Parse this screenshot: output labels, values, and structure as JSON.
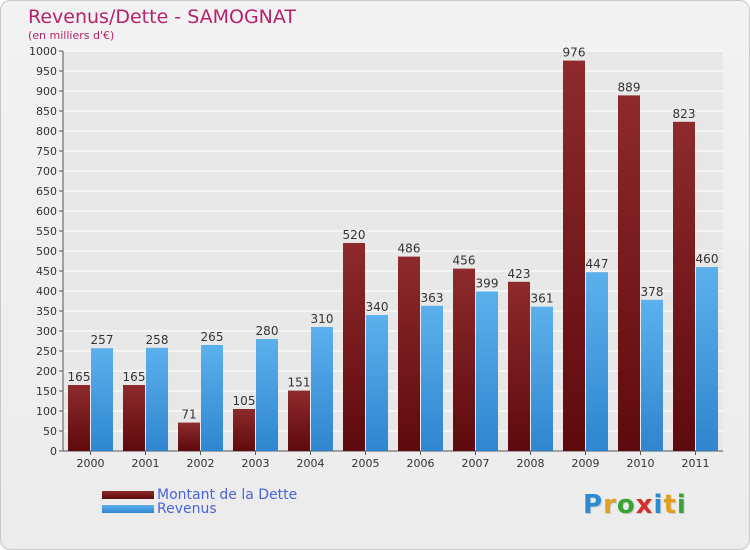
{
  "chart_data": {
    "type": "bar",
    "title": "Revenus/Dette - SAMOGNAT",
    "subtitle": "(en milliers d'€)",
    "categories": [
      "2000",
      "2001",
      "2002",
      "2003",
      "2004",
      "2005",
      "2006",
      "2007",
      "2008",
      "2009",
      "2010",
      "2011"
    ],
    "series": [
      {
        "name": "Montant de la Dette",
        "color": "#7a1216",
        "values": [
          165,
          165,
          71,
          105,
          151,
          520,
          486,
          456,
          423,
          976,
          889,
          823
        ]
      },
      {
        "name": "Revenus",
        "color": "#3d96db",
        "values": [
          257,
          258,
          265,
          280,
          310,
          340,
          363,
          399,
          361,
          447,
          378,
          460
        ]
      }
    ],
    "ylim": [
      0,
      1000
    ],
    "ytick_step": 50,
    "grid": true,
    "legend": "bottom-left"
  },
  "logo": {
    "text": "Proxiti"
  }
}
